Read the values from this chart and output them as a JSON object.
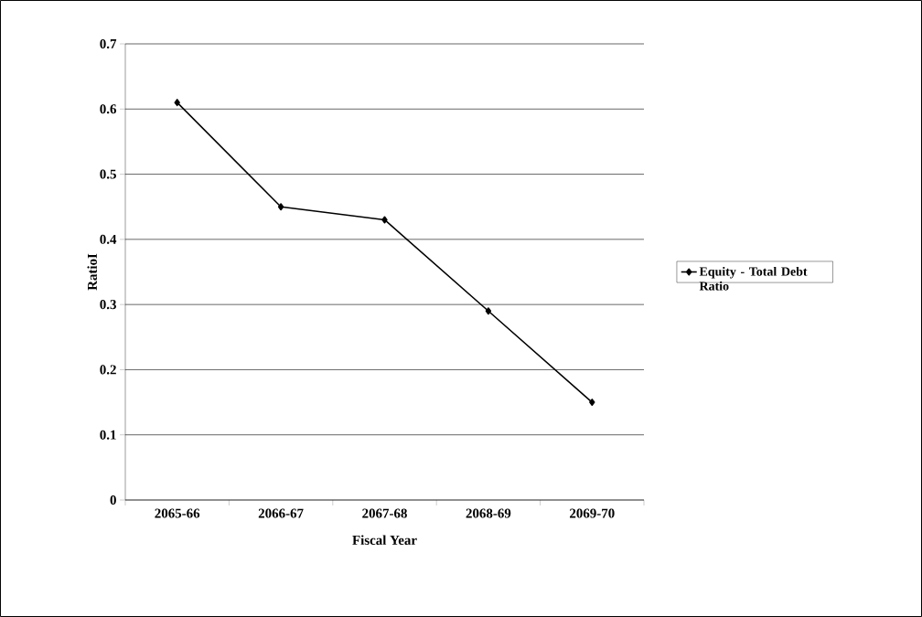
{
  "chart_data": {
    "type": "line",
    "xlabel": "Fiscal Year",
    "ylabel": "RatioI",
    "categories": [
      "2065-66",
      "2066-67",
      "2067-68",
      "2068-69",
      "2069-70"
    ],
    "series": [
      {
        "name": "Equity - Total Debt Ratio",
        "color": "#000000",
        "values": [
          0.61,
          0.45,
          0.43,
          0.29,
          0.15
        ]
      }
    ],
    "ylim": [
      0,
      0.7
    ],
    "yticks": [
      0,
      0.1,
      0.2,
      0.3,
      0.4,
      0.5,
      0.6,
      0.7
    ],
    "grid": "y",
    "legend": "right",
    "marker": "diamond",
    "line_style": "solid"
  }
}
